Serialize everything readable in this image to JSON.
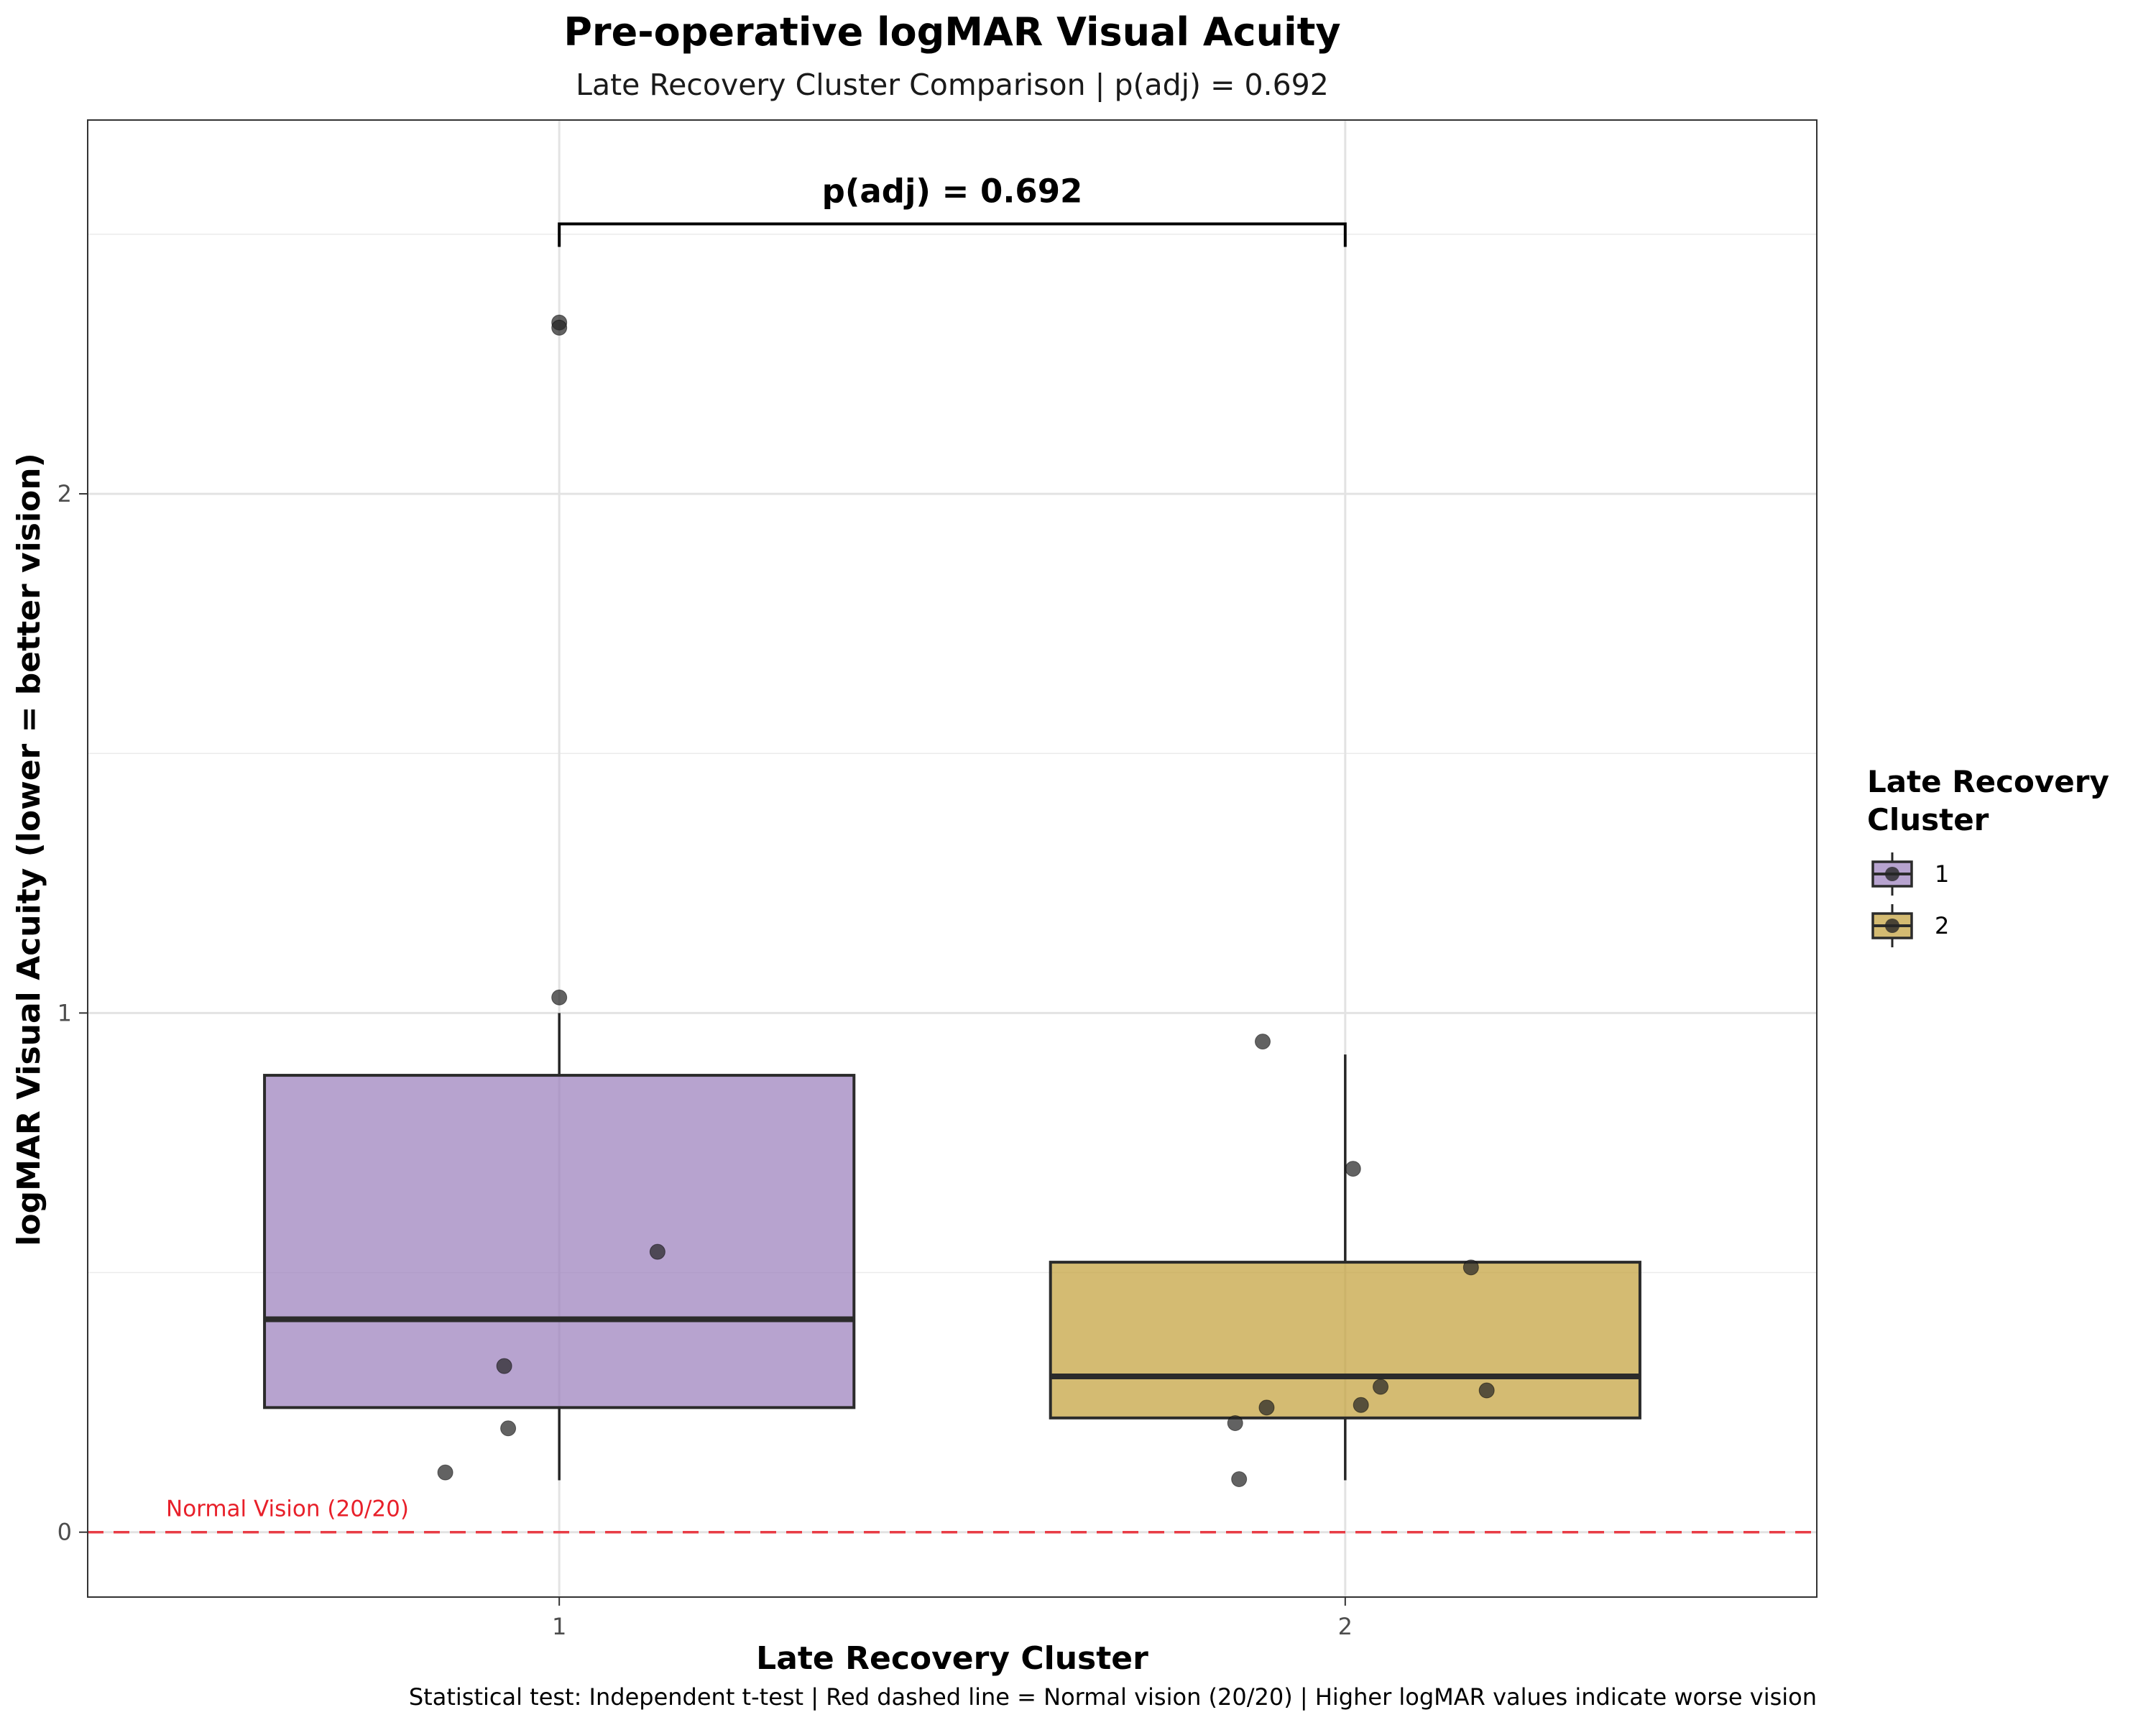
{
  "chart_data": {
    "type": "box",
    "title": "Pre-operative logMAR Visual Acuity",
    "subtitle": "Late Recovery Cluster Comparison | p(adj) = 0.692",
    "xlabel": "Late Recovery Cluster",
    "ylabel": "logMAR Visual Acuity (lower = better vision)",
    "categories": [
      "1",
      "2"
    ],
    "ylim": [
      -0.125,
      2.72
    ],
    "yticks": [
      0,
      1,
      2
    ],
    "ytick_labels": [
      "0",
      "1",
      "2"
    ],
    "grid": true,
    "legend": {
      "title_lines": [
        "Late Recovery",
        "Cluster"
      ],
      "placement": "right",
      "entries": [
        "1",
        "2"
      ]
    },
    "series": [
      {
        "name": "1",
        "color": "#9b7fbc",
        "box": {
          "whisker_low": 0.1,
          "q1": 0.24,
          "median": 0.41,
          "q3": 0.88,
          "whisker_high": 1.0
        },
        "points": [
          {
            "x": 1.0,
            "y": 2.33
          },
          {
            "x": 1.0,
            "y": 2.32
          },
          {
            "x": 1.0,
            "y": 1.03
          },
          {
            "x": 1.125,
            "y": 0.54
          },
          {
            "x": 0.93,
            "y": 0.32
          },
          {
            "x": 0.935,
            "y": 0.2
          },
          {
            "x": 0.855,
            "y": 0.115
          }
        ]
      },
      {
        "name": "2",
        "color": "#c4a13b",
        "box": {
          "whisker_low": 0.1,
          "q1": 0.22,
          "median": 0.3,
          "q3": 0.52,
          "whisker_high": 0.92
        },
        "points": [
          {
            "x": 1.895,
            "y": 0.945
          },
          {
            "x": 2.01,
            "y": 0.7
          },
          {
            "x": 2.16,
            "y": 0.51
          },
          {
            "x": 2.045,
            "y": 0.28
          },
          {
            "x": 2.18,
            "y": 0.273
          },
          {
            "x": 2.02,
            "y": 0.245
          },
          {
            "x": 1.9,
            "y": 0.24
          },
          {
            "x": 1.86,
            "y": 0.21
          },
          {
            "x": 1.865,
            "y": 0.102
          }
        ]
      }
    ],
    "significance": {
      "label": "p(adj) = 0.692",
      "between": [
        "1",
        "2"
      ],
      "y": 2.52
    },
    "reference_line": {
      "y": 0,
      "label": "Normal Vision (20/20)",
      "color": "#e8202a",
      "style": "dashed"
    },
    "caption": "Statistical test: Independent t-test | Red dashed line = Normal vision (20/20) | Higher logMAR values indicate worse vision"
  }
}
